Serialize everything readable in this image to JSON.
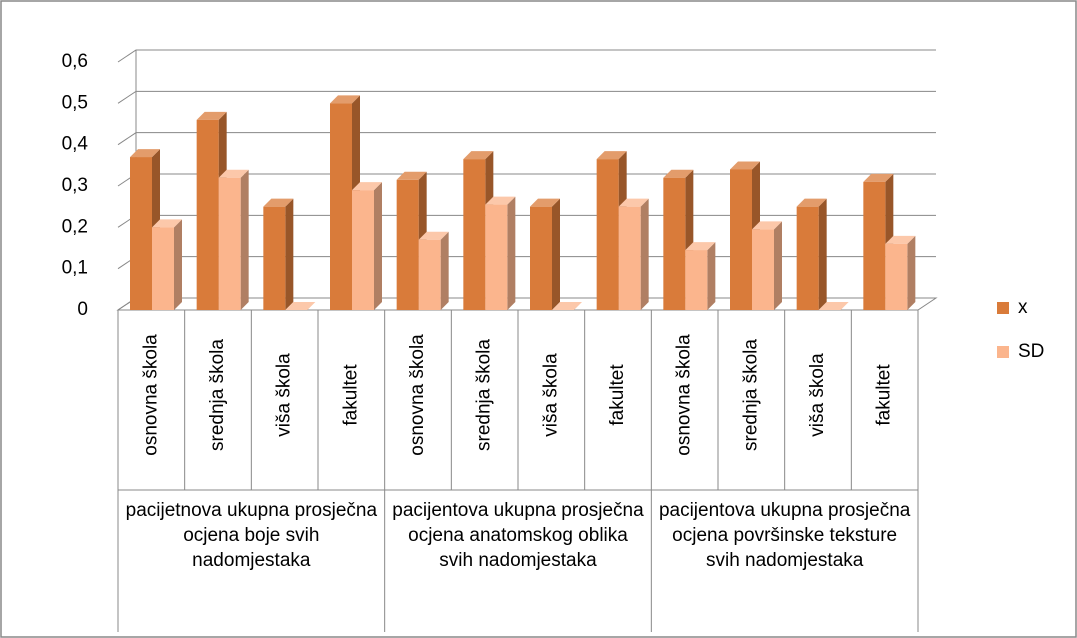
{
  "chart_data": {
    "type": "bar",
    "categories": [
      "osnovna škola",
      "srednja škola",
      "viša škola",
      "fakultet",
      "osnovna škola",
      "srednja škola",
      "viša škola",
      "fakultet",
      "osnovna škola",
      "srednja škola",
      "viša škola",
      "fakultet"
    ],
    "groups": [
      "pacijetnova ukupna prosječna ocjena boje svih nadomjestaka",
      "pacijentova ukupna prosječna ocjena anatomskog oblika svih nadomjestaka",
      "pacijentova ukupna prosječna ocjena površinske teksture svih nadomjestaka"
    ],
    "series": [
      {
        "name": "x",
        "color": "#d97b3a",
        "values": [
          0.37,
          0.46,
          0.25,
          0.5,
          0.315,
          0.365,
          0.25,
          0.365,
          0.32,
          0.34,
          0.25,
          0.31
        ]
      },
      {
        "name": "SD",
        "color": "#fbb58d",
        "values": [
          0.2,
          0.32,
          0,
          0.29,
          0.17,
          0.255,
          0,
          0.25,
          0.145,
          0.195,
          0,
          0.16
        ]
      }
    ],
    "ylim": [
      0,
      0.6
    ],
    "yticks": [
      0,
      {
        "value": 0.1,
        "label": "0,1"
      },
      {
        "value": 0.2,
        "label": "0,2"
      },
      {
        "value": 0.3,
        "label": "0,3"
      },
      {
        "value": 0.4,
        "label": "0,4"
      },
      {
        "value": 0.5,
        "label": "0,5"
      },
      {
        "value": 0.6,
        "label": "0,6"
      }
    ],
    "grid": true,
    "legend": "right"
  }
}
